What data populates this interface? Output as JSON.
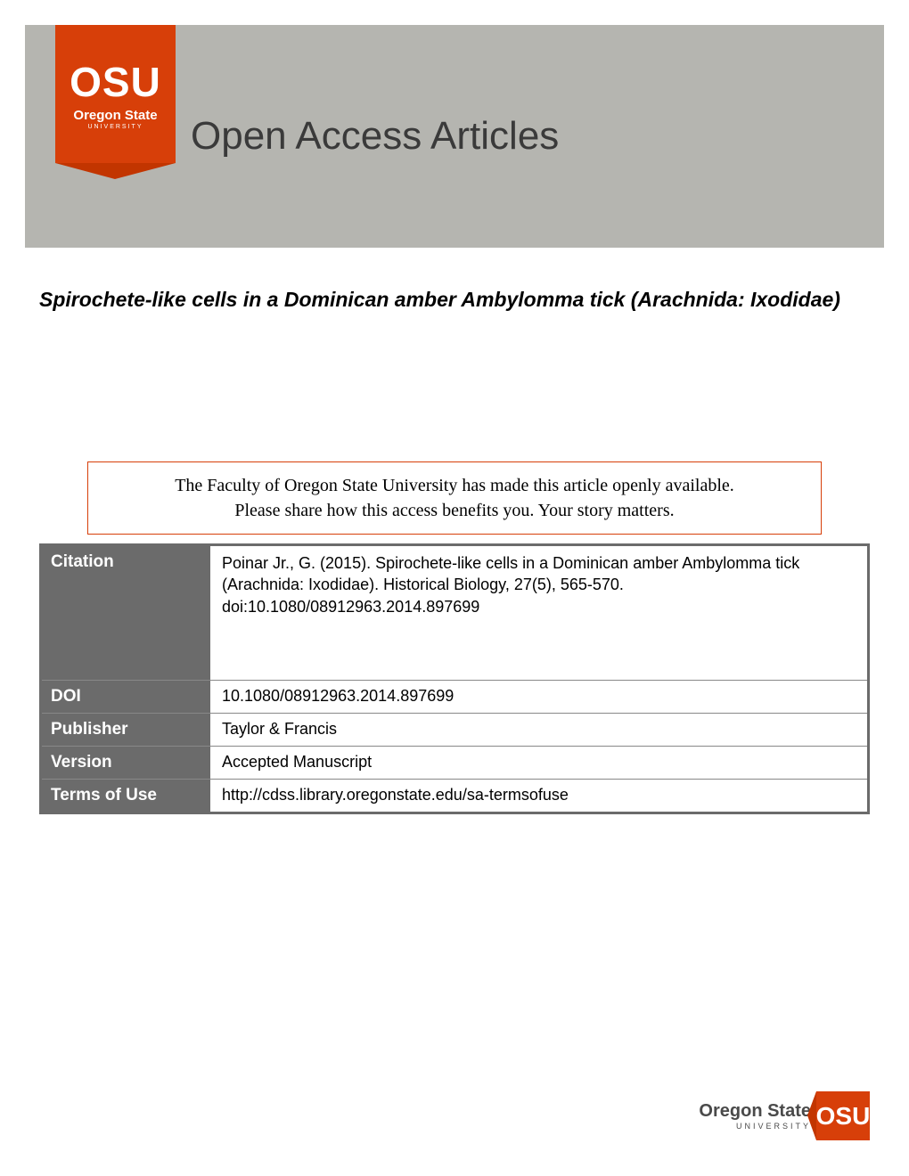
{
  "header": {
    "logo_text": "OSU",
    "logo_sub": "Oregon State",
    "logo_tiny": "UNIVERSITY",
    "banner_title": "Open Access Articles",
    "banner_bg": "#b5b5b0",
    "logo_bg": "#d73f09"
  },
  "article": {
    "title": "Spirochete-like cells in a Dominican amber Ambylomma tick (Arachnida: Ixodidae)"
  },
  "notice": {
    "line1": "The Faculty of Oregon State University has made this article openly available.",
    "line2": "Please share how this access benefits you. Your story matters.",
    "border_color": "#d73f09"
  },
  "metadata": {
    "rows": [
      {
        "label": "Citation",
        "value": "Poinar Jr., G. (2015). Spirochete-like cells in a Dominican amber Ambylomma tick (Arachnida: Ixodidae). Historical Biology, 27(5), 565-570. doi:10.1080/08912963.2014.897699"
      },
      {
        "label": "DOI",
        "value": "10.1080/08912963.2014.897699"
      },
      {
        "label": "Publisher",
        "value": "Taylor & Francis"
      },
      {
        "label": "Version",
        "value": "Accepted Manuscript"
      },
      {
        "label": "Terms of Use",
        "value": "http://cdss.library.oregonstate.edu/sa-termsofuse"
      }
    ],
    "label_bg": "#6b6b6b",
    "label_color": "#ffffff"
  },
  "footer": {
    "main": "Oregon State",
    "sub": "UNIVERSITY",
    "icon_text": "OSU",
    "icon_bg": "#d73f09"
  }
}
